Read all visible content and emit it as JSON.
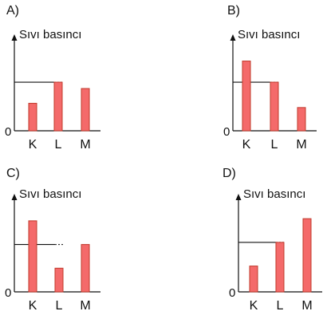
{
  "chart_data": [
    {
      "type": "bar",
      "panel_label": "A)",
      "ylabel": "Sıvı basıncı",
      "zero_label": "0",
      "categories": [
        "K",
        "L",
        "M"
      ],
      "values": [
        1.3,
        2.3,
        2.0
      ],
      "reference_line": 2.3,
      "ylim": [
        0,
        4
      ],
      "colors": {
        "bar_fill": "#f46a6a",
        "bar_stroke": "#c0392b",
        "axis": "#111111"
      }
    },
    {
      "type": "bar",
      "panel_label": "B)",
      "ylabel": "Sıvı basıncı",
      "zero_label": "0",
      "categories": [
        "K",
        "L",
        "M"
      ],
      "values": [
        3.3,
        2.3,
        1.1
      ],
      "reference_line": 2.3,
      "ylim": [
        0,
        4
      ],
      "colors": {
        "bar_fill": "#f46a6a",
        "bar_stroke": "#c0392b",
        "axis": "#111111"
      }
    },
    {
      "type": "bar",
      "panel_label": "C)",
      "ylabel": "Sıvı basıncı",
      "zero_label": "0",
      "categories": [
        "K",
        "L",
        "M"
      ],
      "values": [
        3.3,
        1.1,
        2.2
      ],
      "reference_line": 2.2,
      "ylim": [
        0,
        4
      ],
      "colors": {
        "bar_fill": "#f46a6a",
        "bar_stroke": "#c0392b",
        "axis": "#111111"
      }
    },
    {
      "type": "bar",
      "panel_label": "D)",
      "ylabel": "Sıvı basıncı",
      "zero_label": "0",
      "categories": [
        "K",
        "L",
        "M"
      ],
      "values": [
        1.2,
        2.3,
        3.4
      ],
      "reference_line": 2.3,
      "ylim": [
        0,
        4
      ],
      "colors": {
        "bar_fill": "#f46a6a",
        "bar_stroke": "#c0392b",
        "axis": "#111111"
      }
    }
  ]
}
